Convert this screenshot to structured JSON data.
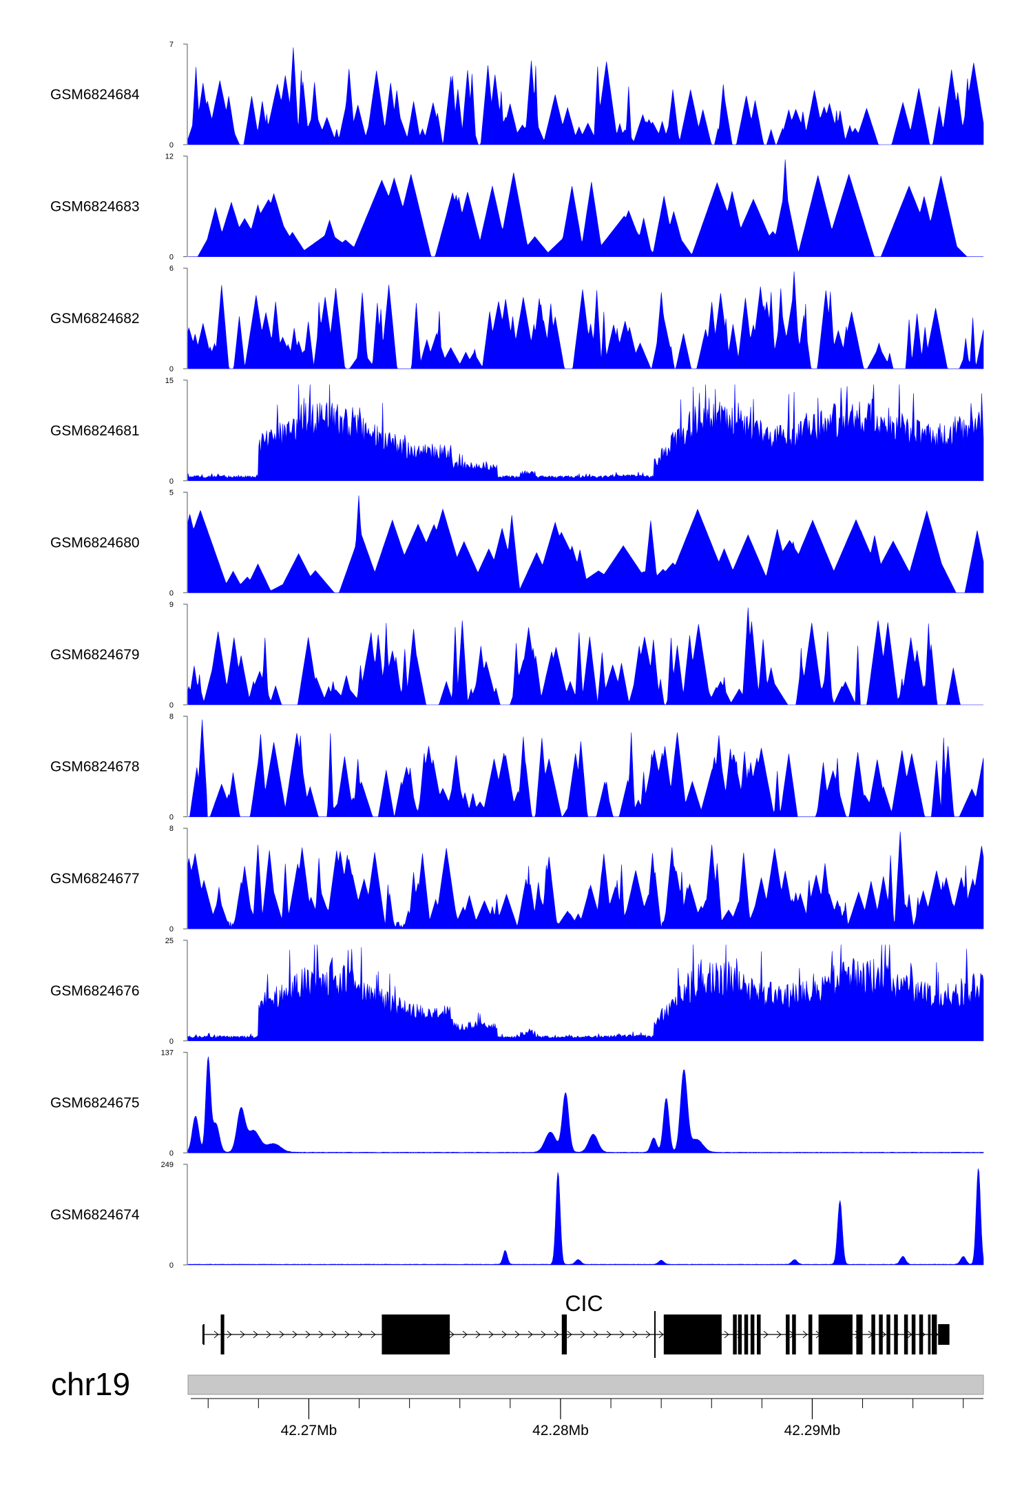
{
  "chart_data": {
    "type": "area",
    "title": "",
    "chromosome": "chr19",
    "gene": "CIC",
    "x_range_bp": [
      42265200,
      42296800
    ],
    "x_ticks": [
      {
        "pos": 42270000,
        "label": "42.27Mb"
      },
      {
        "pos": 42280000,
        "label": "42.28Mb"
      },
      {
        "pos": 42290000,
        "label": "42.29Mb"
      }
    ],
    "minor_tick_step_bp": 2000,
    "series_color": "#0000ff",
    "tracks": [
      {
        "name": "GSM6824684",
        "ymin": 0,
        "ymax": 7,
        "ymin_label": "0",
        "ymax_label": "7",
        "profile": "sparse"
      },
      {
        "name": "GSM6824683",
        "ymin": 0,
        "ymax": 12,
        "ymin_label": "0",
        "ymax_label": "12",
        "profile": "spiky"
      },
      {
        "name": "GSM6824682",
        "ymin": 0,
        "ymax": 6,
        "ymin_label": "0",
        "ymax_label": "6",
        "profile": "sparse"
      },
      {
        "name": "GSM6824681",
        "ymin": 0,
        "ymax": 15,
        "ymin_label": "0",
        "ymax_label": "15",
        "profile": "broad"
      },
      {
        "name": "GSM6824680",
        "ymin": 0,
        "ymax": 5,
        "ymin_label": "0",
        "ymax_label": "5",
        "profile": "spiky"
      },
      {
        "name": "GSM6824679",
        "ymin": 0,
        "ymax": 9,
        "ymin_label": "0",
        "ymax_label": "9",
        "profile": "sparse"
      },
      {
        "name": "GSM6824678",
        "ymin": 0,
        "ymax": 8,
        "ymin_label": "0",
        "ymax_label": "8",
        "profile": "sparse"
      },
      {
        "name": "GSM6824677",
        "ymin": 0,
        "ymax": 8,
        "ymin_label": "0",
        "ymax_label": "8",
        "profile": "dense"
      },
      {
        "name": "GSM6824676",
        "ymin": 0,
        "ymax": 25,
        "ymin_label": "0",
        "ymax_label": "25",
        "profile": "broad"
      },
      {
        "name": "GSM6824675",
        "ymin": 0,
        "ymax": 137,
        "ymin_label": "0",
        "ymax_label": "137",
        "profile": "peaks",
        "peaks": [
          {
            "pos": 42265500,
            "height": 50,
            "width": 180
          },
          {
            "pos": 42266000,
            "height": 128,
            "width": 130
          },
          {
            "pos": 42266300,
            "height": 40,
            "width": 200
          },
          {
            "pos": 42267300,
            "height": 58,
            "width": 220
          },
          {
            "pos": 42267800,
            "height": 30,
            "width": 350
          },
          {
            "pos": 42268600,
            "height": 12,
            "width": 400
          },
          {
            "pos": 42280200,
            "height": 82,
            "width": 180
          },
          {
            "pos": 42279600,
            "height": 28,
            "width": 300
          },
          {
            "pos": 42281300,
            "height": 25,
            "width": 260
          },
          {
            "pos": 42283700,
            "height": 20,
            "width": 160
          },
          {
            "pos": 42284200,
            "height": 75,
            "width": 160
          },
          {
            "pos": 42284900,
            "height": 112,
            "width": 190
          },
          {
            "pos": 42285400,
            "height": 18,
            "width": 350
          }
        ]
      },
      {
        "name": "GSM6824674",
        "ymin": 0,
        "ymax": 249,
        "ymin_label": "0",
        "ymax_label": "249",
        "profile": "peaks",
        "peaks": [
          {
            "pos": 42277800,
            "height": 35,
            "width": 120
          },
          {
            "pos": 42279900,
            "height": 232,
            "width": 120
          },
          {
            "pos": 42280700,
            "height": 12,
            "width": 150
          },
          {
            "pos": 42284000,
            "height": 10,
            "width": 150
          },
          {
            "pos": 42289300,
            "height": 12,
            "width": 150
          },
          {
            "pos": 42291100,
            "height": 160,
            "width": 130
          },
          {
            "pos": 42293600,
            "height": 20,
            "width": 150
          },
          {
            "pos": 42296000,
            "height": 20,
            "width": 150
          },
          {
            "pos": 42296600,
            "height": 242,
            "width": 120
          }
        ]
      }
    ],
    "gene_model": {
      "name": "CIC",
      "strand": "+",
      "start": 42265800,
      "end": 42295450,
      "exons": [
        {
          "start": 42265800,
          "end": 42265830,
          "thick": false
        },
        {
          "start": 42266500,
          "end": 42266640,
          "thick": true
        },
        {
          "start": 42272900,
          "end": 42275600,
          "thick": true
        },
        {
          "start": 42280050,
          "end": 42280250,
          "thick": true
        },
        {
          "start": 42284100,
          "end": 42286400,
          "thick": true
        },
        {
          "start": 42286850,
          "end": 42287000,
          "thick": true
        },
        {
          "start": 42287050,
          "end": 42287200,
          "thick": true
        },
        {
          "start": 42287300,
          "end": 42287450,
          "thick": true
        },
        {
          "start": 42287550,
          "end": 42287700,
          "thick": true
        },
        {
          "start": 42287800,
          "end": 42287950,
          "thick": true
        },
        {
          "start": 42288950,
          "end": 42289100,
          "thick": true
        },
        {
          "start": 42289200,
          "end": 42289350,
          "thick": true
        },
        {
          "start": 42289850,
          "end": 42290000,
          "thick": true
        },
        {
          "start": 42290250,
          "end": 42291600,
          "thick": true
        },
        {
          "start": 42291750,
          "end": 42292000,
          "thick": true
        },
        {
          "start": 42292350,
          "end": 42292500,
          "thick": true
        },
        {
          "start": 42292650,
          "end": 42292800,
          "thick": true
        },
        {
          "start": 42292950,
          "end": 42293100,
          "thick": true
        },
        {
          "start": 42293250,
          "end": 42293400,
          "thick": true
        },
        {
          "start": 42293650,
          "end": 42293800,
          "thick": true
        },
        {
          "start": 42293950,
          "end": 42294100,
          "thick": true
        },
        {
          "start": 42294250,
          "end": 42294400,
          "thick": true
        },
        {
          "start": 42294600,
          "end": 42294700,
          "thick": true
        },
        {
          "start": 42294750,
          "end": 42294950,
          "thick": true
        },
        {
          "start": 42295000,
          "end": 42295450,
          "thick": false
        }
      ]
    }
  }
}
